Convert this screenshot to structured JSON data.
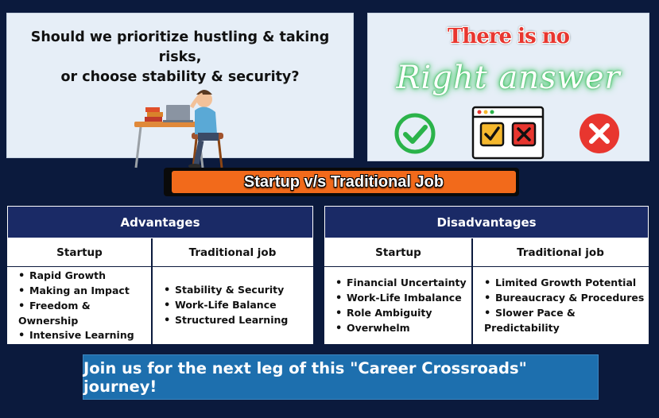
{
  "question": {
    "line1": "Should we prioritize hustling & taking risks,",
    "line2": "or choose stability & security?"
  },
  "answer": {
    "line1": "There is no",
    "line2": "Right answer",
    "icons": [
      "check-icon",
      "checkbox-window-icon",
      "cross-icon"
    ],
    "colors": {
      "check": "#2bb34a",
      "cross": "#e8362f"
    }
  },
  "banner": {
    "title": "Startup v/s Traditional Job",
    "color": "#f26a1b"
  },
  "advantages": {
    "header": "Advantages",
    "startup": {
      "label": "Startup",
      "items": [
        "Rapid Growth",
        "Making an Impact",
        "Freedom & Ownership",
        "Intensive Learning"
      ]
    },
    "traditional": {
      "label": "Traditional job",
      "items": [
        "Stability & Security",
        "Work-Life Balance",
        "Structured Learning"
      ]
    }
  },
  "disadvantages": {
    "header": "Disadvantages",
    "startup": {
      "label": "Startup",
      "items": [
        "Financial Uncertainty",
        "Work-Life Imbalance",
        "Role Ambiguity",
        "Overwhelm"
      ]
    },
    "traditional": {
      "label": "Traditional job",
      "items": [
        "Limited Growth Potential",
        "Bureaucracy & Procedures",
        "Slower Pace & Predictability"
      ]
    }
  },
  "cta": {
    "text": "Join us for the next leg of this \"Career Crossroads\" journey!"
  }
}
